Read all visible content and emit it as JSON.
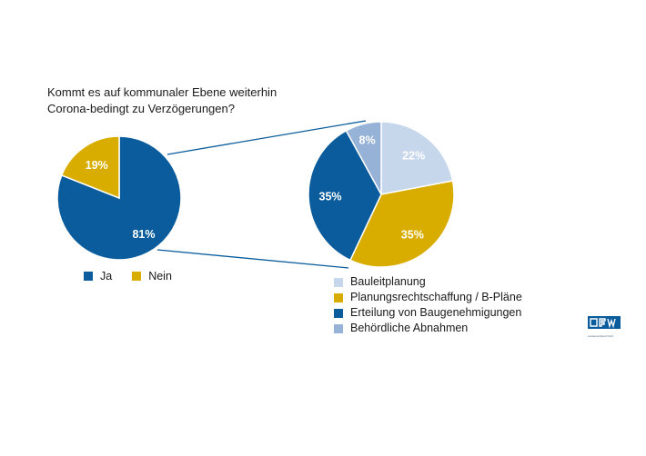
{
  "question": {
    "line1": "Kommt es auf kommunaler Ebene weiterhin",
    "line2": "Corona-bedingt zu Verzögerungen?"
  },
  "chart_data": [
    {
      "type": "pie",
      "categories": [
        "Ja",
        "Nein"
      ],
      "values": [
        81,
        19
      ],
      "labels": [
        "81%",
        "19%"
      ],
      "colors": [
        "#0a5c9c",
        "#d9ad00"
      ],
      "legend": "bottom"
    },
    {
      "type": "pie",
      "categories": [
        "Bauleitplanung",
        "Planungsrechtschaffung / B-Pläne",
        "Erteilung von Baugenehmigungen",
        "Behördliche Abnahmen"
      ],
      "values": [
        22,
        35,
        35,
        8
      ],
      "labels": [
        "22%",
        "35%",
        "35%",
        "8%"
      ],
      "colors": [
        "#c6d6eb",
        "#d9ad00",
        "#0a5c9c",
        "#96b3d7"
      ],
      "legend": "bottom"
    }
  ],
  "logo": {
    "icon": "bfw-logo-icon",
    "tagline": "Landesverband Nord"
  }
}
